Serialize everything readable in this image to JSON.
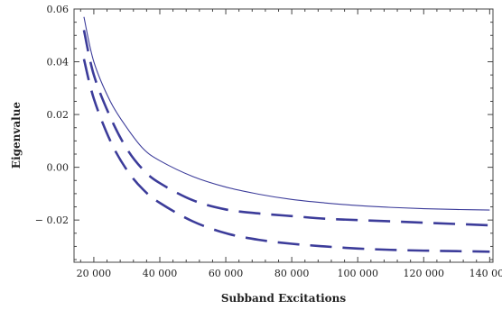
{
  "chart_data": {
    "type": "line",
    "title": "",
    "xlabel": "Subband Excitations",
    "ylabel": "Eigenvalue",
    "xlim": [
      14000,
      141000
    ],
    "ylim": [
      -0.036,
      0.06
    ],
    "grid": false,
    "x_ticks": [
      20000,
      40000,
      60000,
      80000,
      100000,
      120000,
      140000
    ],
    "x_tick_labels": [
      "20 000",
      "40 000",
      "60 000",
      "80 000",
      "100 000",
      "120 000",
      "140 000"
    ],
    "y_ticks": [
      0.06,
      0.04,
      0.02,
      0.0,
      -0.02
    ],
    "y_tick_labels": [
      "0.06",
      "0.04",
      "0.02",
      "0.00",
      "− 0.02"
    ],
    "series": [
      {
        "style": "solid",
        "color": "#3c3c9a",
        "x": [
          17000,
          20000,
          25000,
          30000,
          35000,
          40000,
          50000,
          60000,
          70000,
          80000,
          90000,
          100000,
          110000,
          120000,
          130000,
          140000
        ],
        "y": [
          0.057,
          0.04,
          0.025,
          0.015,
          0.007,
          0.0025,
          -0.0035,
          -0.0075,
          -0.0102,
          -0.0122,
          -0.0135,
          -0.0145,
          -0.0152,
          -0.0157,
          -0.016,
          -0.0162
        ]
      },
      {
        "style": "long-dash",
        "color": "#3c3c9a",
        "x": [
          17000,
          20000,
          25000,
          30000,
          35000,
          40000,
          50000,
          60000,
          70000,
          80000,
          90000,
          100000,
          110000,
          120000,
          130000,
          140000
        ],
        "y": [
          0.052,
          0.035,
          0.019,
          0.007,
          -0.001,
          -0.006,
          -0.0125,
          -0.016,
          -0.0175,
          -0.0185,
          -0.0195,
          -0.02,
          -0.0205,
          -0.021,
          -0.0215,
          -0.022
        ]
      },
      {
        "style": "long-dash",
        "color": "#3c3c9a",
        "x": [
          17000,
          20000,
          25000,
          30000,
          35000,
          40000,
          50000,
          60000,
          70000,
          80000,
          90000,
          100000,
          110000,
          120000,
          130000,
          140000
        ],
        "y": [
          0.041,
          0.026,
          0.01,
          -0.001,
          -0.0085,
          -0.0135,
          -0.0205,
          -0.025,
          -0.0275,
          -0.029,
          -0.03,
          -0.0308,
          -0.0313,
          -0.0316,
          -0.0318,
          -0.032
        ]
      }
    ]
  }
}
